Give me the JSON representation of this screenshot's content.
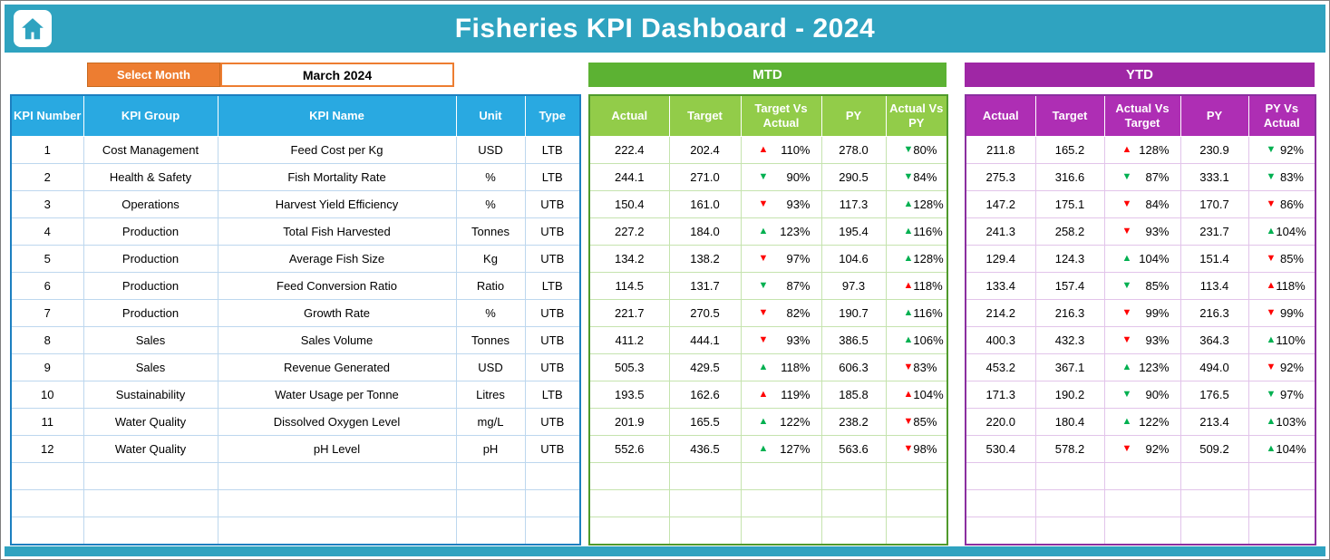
{
  "header": {
    "title": "Fisheries KPI Dashboard - 2024"
  },
  "month_selector": {
    "label": "Select Month",
    "value": "March 2024"
  },
  "sections": {
    "mtd": "MTD",
    "ytd": "YTD"
  },
  "tables": {
    "kpi_headers": [
      "KPI Number",
      "KPI Group",
      "KPI Name",
      "Unit",
      "Type"
    ],
    "mtd_headers": [
      "Actual",
      "Target",
      "Target Vs Actual",
      "PY",
      "Actual Vs PY"
    ],
    "ytd_headers": [
      "Actual",
      "Target",
      "Actual Vs Target",
      "PY",
      "PY Vs Actual"
    ]
  },
  "empty_rows": 3,
  "colors": {
    "titlebar_teal": "#2fa3c0",
    "selector_orange": "#ed7d31",
    "kpi_header_blue": "#29a9e1",
    "mtd_bar_green": "#5cb233",
    "mtd_header_green": "#92cc49",
    "ytd_purple": "#9f27a5",
    "trend_bad_red": "#ff0000",
    "trend_good_green": "#00b050"
  },
  "rows": [
    {
      "number": "1",
      "group": "Cost Management",
      "name": "Feed Cost per Kg",
      "unit": "USD",
      "type": "LTB",
      "mtd": {
        "actual": "222.4",
        "target": "202.4",
        "target_vs_actual": {
          "dir": "up",
          "color": "red",
          "value": "110%"
        },
        "py": "278.0",
        "actual_vs_py": {
          "dir": "down",
          "color": "green",
          "value": "80%"
        }
      },
      "ytd": {
        "actual": "211.8",
        "target": "165.2",
        "actual_vs_target": {
          "dir": "up",
          "color": "red",
          "value": "128%"
        },
        "py": "230.9",
        "py_vs_actual": {
          "dir": "down",
          "color": "green",
          "value": "92%"
        }
      }
    },
    {
      "number": "2",
      "group": "Health & Safety",
      "name": "Fish Mortality Rate",
      "unit": "%",
      "type": "LTB",
      "mtd": {
        "actual": "244.1",
        "target": "271.0",
        "target_vs_actual": {
          "dir": "down",
          "color": "green",
          "value": "90%"
        },
        "py": "290.5",
        "actual_vs_py": {
          "dir": "down",
          "color": "green",
          "value": "84%"
        }
      },
      "ytd": {
        "actual": "275.3",
        "target": "316.6",
        "actual_vs_target": {
          "dir": "down",
          "color": "green",
          "value": "87%"
        },
        "py": "333.1",
        "py_vs_actual": {
          "dir": "down",
          "color": "green",
          "value": "83%"
        }
      }
    },
    {
      "number": "3",
      "group": "Operations",
      "name": "Harvest Yield Efficiency",
      "unit": "%",
      "type": "UTB",
      "mtd": {
        "actual": "150.4",
        "target": "161.0",
        "target_vs_actual": {
          "dir": "down",
          "color": "red",
          "value": "93%"
        },
        "py": "117.3",
        "actual_vs_py": {
          "dir": "up",
          "color": "green",
          "value": "128%"
        }
      },
      "ytd": {
        "actual": "147.2",
        "target": "175.1",
        "actual_vs_target": {
          "dir": "down",
          "color": "red",
          "value": "84%"
        },
        "py": "170.7",
        "py_vs_actual": {
          "dir": "down",
          "color": "red",
          "value": "86%"
        }
      }
    },
    {
      "number": "4",
      "group": "Production",
      "name": "Total Fish Harvested",
      "unit": "Tonnes",
      "type": "UTB",
      "mtd": {
        "actual": "227.2",
        "target": "184.0",
        "target_vs_actual": {
          "dir": "up",
          "color": "green",
          "value": "123%"
        },
        "py": "195.4",
        "actual_vs_py": {
          "dir": "up",
          "color": "green",
          "value": "116%"
        }
      },
      "ytd": {
        "actual": "241.3",
        "target": "258.2",
        "actual_vs_target": {
          "dir": "down",
          "color": "red",
          "value": "93%"
        },
        "py": "231.7",
        "py_vs_actual": {
          "dir": "up",
          "color": "green",
          "value": "104%"
        }
      }
    },
    {
      "number": "5",
      "group": "Production",
      "name": "Average Fish Size",
      "unit": "Kg",
      "type": "UTB",
      "mtd": {
        "actual": "134.2",
        "target": "138.2",
        "target_vs_actual": {
          "dir": "down",
          "color": "red",
          "value": "97%"
        },
        "py": "104.6",
        "actual_vs_py": {
          "dir": "up",
          "color": "green",
          "value": "128%"
        }
      },
      "ytd": {
        "actual": "129.4",
        "target": "124.3",
        "actual_vs_target": {
          "dir": "up",
          "color": "green",
          "value": "104%"
        },
        "py": "151.4",
        "py_vs_actual": {
          "dir": "down",
          "color": "red",
          "value": "85%"
        }
      }
    },
    {
      "number": "6",
      "group": "Production",
      "name": "Feed Conversion Ratio",
      "unit": "Ratio",
      "type": "LTB",
      "mtd": {
        "actual": "114.5",
        "target": "131.7",
        "target_vs_actual": {
          "dir": "down",
          "color": "green",
          "value": "87%"
        },
        "py": "97.3",
        "actual_vs_py": {
          "dir": "up",
          "color": "red",
          "value": "118%"
        }
      },
      "ytd": {
        "actual": "133.4",
        "target": "157.4",
        "actual_vs_target": {
          "dir": "down",
          "color": "green",
          "value": "85%"
        },
        "py": "113.4",
        "py_vs_actual": {
          "dir": "up",
          "color": "red",
          "value": "118%"
        }
      }
    },
    {
      "number": "7",
      "group": "Production",
      "name": "Growth Rate",
      "unit": "%",
      "type": "UTB",
      "mtd": {
        "actual": "221.7",
        "target": "270.5",
        "target_vs_actual": {
          "dir": "down",
          "color": "red",
          "value": "82%"
        },
        "py": "190.7",
        "actual_vs_py": {
          "dir": "up",
          "color": "green",
          "value": "116%"
        }
      },
      "ytd": {
        "actual": "214.2",
        "target": "216.3",
        "actual_vs_target": {
          "dir": "down",
          "color": "red",
          "value": "99%"
        },
        "py": "216.3",
        "py_vs_actual": {
          "dir": "down",
          "color": "red",
          "value": "99%"
        }
      }
    },
    {
      "number": "8",
      "group": "Sales",
      "name": "Sales Volume",
      "unit": "Tonnes",
      "type": "UTB",
      "mtd": {
        "actual": "411.2",
        "target": "444.1",
        "target_vs_actual": {
          "dir": "down",
          "color": "red",
          "value": "93%"
        },
        "py": "386.5",
        "actual_vs_py": {
          "dir": "up",
          "color": "green",
          "value": "106%"
        }
      },
      "ytd": {
        "actual": "400.3",
        "target": "432.3",
        "actual_vs_target": {
          "dir": "down",
          "color": "red",
          "value": "93%"
        },
        "py": "364.3",
        "py_vs_actual": {
          "dir": "up",
          "color": "green",
          "value": "110%"
        }
      }
    },
    {
      "number": "9",
      "group": "Sales",
      "name": "Revenue Generated",
      "unit": "USD",
      "type": "UTB",
      "mtd": {
        "actual": "505.3",
        "target": "429.5",
        "target_vs_actual": {
          "dir": "up",
          "color": "green",
          "value": "118%"
        },
        "py": "606.3",
        "actual_vs_py": {
          "dir": "down",
          "color": "red",
          "value": "83%"
        }
      },
      "ytd": {
        "actual": "453.2",
        "target": "367.1",
        "actual_vs_target": {
          "dir": "up",
          "color": "green",
          "value": "123%"
        },
        "py": "494.0",
        "py_vs_actual": {
          "dir": "down",
          "color": "red",
          "value": "92%"
        }
      }
    },
    {
      "number": "10",
      "group": "Sustainability",
      "name": "Water Usage per Tonne",
      "unit": "Litres",
      "type": "LTB",
      "mtd": {
        "actual": "193.5",
        "target": "162.6",
        "target_vs_actual": {
          "dir": "up",
          "color": "red",
          "value": "119%"
        },
        "py": "185.8",
        "actual_vs_py": {
          "dir": "up",
          "color": "red",
          "value": "104%"
        }
      },
      "ytd": {
        "actual": "171.3",
        "target": "190.2",
        "actual_vs_target": {
          "dir": "down",
          "color": "green",
          "value": "90%"
        },
        "py": "176.5",
        "py_vs_actual": {
          "dir": "down",
          "color": "green",
          "value": "97%"
        }
      }
    },
    {
      "number": "11",
      "group": "Water Quality",
      "name": "Dissolved Oxygen Level",
      "unit": "mg/L",
      "type": "UTB",
      "mtd": {
        "actual": "201.9",
        "target": "165.5",
        "target_vs_actual": {
          "dir": "up",
          "color": "green",
          "value": "122%"
        },
        "py": "238.2",
        "actual_vs_py": {
          "dir": "down",
          "color": "red",
          "value": "85%"
        }
      },
      "ytd": {
        "actual": "220.0",
        "target": "180.4",
        "actual_vs_target": {
          "dir": "up",
          "color": "green",
          "value": "122%"
        },
        "py": "213.4",
        "py_vs_actual": {
          "dir": "up",
          "color": "green",
          "value": "103%"
        }
      }
    },
    {
      "number": "12",
      "group": "Water Quality",
      "name": "pH Level",
      "unit": "pH",
      "type": "UTB",
      "mtd": {
        "actual": "552.6",
        "target": "436.5",
        "target_vs_actual": {
          "dir": "up",
          "color": "green",
          "value": "127%"
        },
        "py": "563.6",
        "actual_vs_py": {
          "dir": "down",
          "color": "red",
          "value": "98%"
        }
      },
      "ytd": {
        "actual": "530.4",
        "target": "578.2",
        "actual_vs_target": {
          "dir": "down",
          "color": "red",
          "value": "92%"
        },
        "py": "509.2",
        "py_vs_actual": {
          "dir": "up",
          "color": "green",
          "value": "104%"
        }
      }
    }
  ]
}
